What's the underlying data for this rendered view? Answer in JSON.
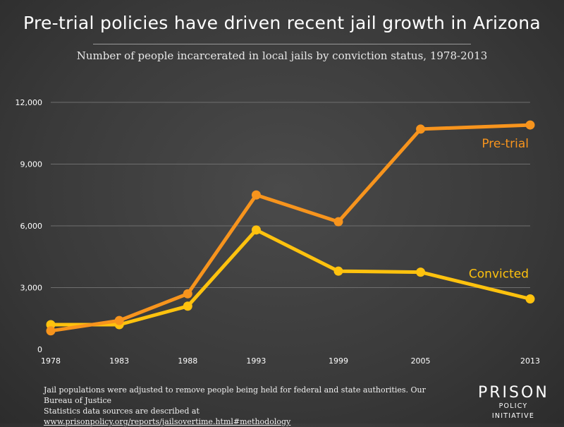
{
  "title": "Pre-trial policies have driven recent jail growth in Arizona",
  "subtitle": "Number of people incarcerated in local jails by conviction status, 1978-2013",
  "chart_data": {
    "type": "line",
    "title": "Pre-trial policies have driven recent jail growth in Arizona",
    "subtitle": "Number of people incarcerated in local jails by conviction status, 1978-2013",
    "xlabel": "",
    "ylabel": "",
    "x": [
      1978,
      1983,
      1988,
      1993,
      1999,
      2005,
      2013
    ],
    "x_tick_labels": [
      "1978",
      "1983",
      "1988",
      "1993",
      "1999",
      "2005",
      "2013"
    ],
    "ylim": [
      0,
      12000
    ],
    "y_ticks": [
      0,
      3000,
      6000,
      9000,
      12000
    ],
    "y_tick_labels": [
      "0",
      "3,000",
      "6,000",
      "9,000",
      "12,000"
    ],
    "grid": "horizontal",
    "series": [
      {
        "name": "Pre-trial",
        "color": "#f7941d",
        "values": [
          900,
          1400,
          2700,
          7500,
          6200,
          10700,
          10900
        ]
      },
      {
        "name": "Convicted",
        "color": "#ffc20e",
        "values": [
          1200,
          1200,
          2100,
          5800,
          3800,
          3750,
          2450
        ]
      }
    ]
  },
  "footer": {
    "line1": "Jail populations were adjusted to remove people being held for federal and state authorities. Our Bureau of Justice",
    "line2_prefix": "Statistics data sources are described at ",
    "url": "www.prisonpolicy.org/reports/jailsovertime.html#methodology"
  },
  "logo": {
    "top": "PRISON",
    "bottom": "POLICY INITIATIVE"
  }
}
